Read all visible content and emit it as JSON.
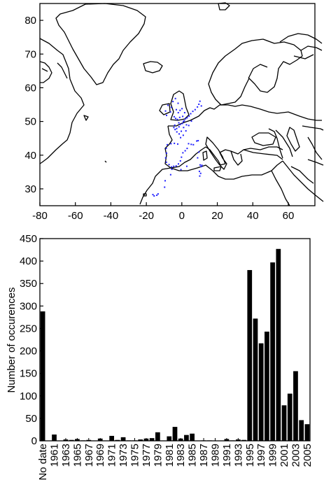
{
  "chart_data": [
    {
      "type": "map",
      "description_kind": "occurrence points on coastline map",
      "xlim": [
        -80,
        75
      ],
      "ylim": [
        25,
        85
      ],
      "xticks": [
        -80,
        -60,
        -40,
        -20,
        0,
        20,
        40,
        60
      ],
      "yticks": [
        30,
        40,
        50,
        60,
        70,
        80
      ],
      "point_color": "#1f1fff",
      "points": [
        [
          -4.5,
          48.2
        ],
        [
          -3.8,
          47.6
        ],
        [
          -2.9,
          47.9
        ],
        [
          -1.6,
          48.4
        ],
        [
          -0.9,
          49.1
        ],
        [
          0.3,
          49.4
        ],
        [
          1.4,
          50.2
        ],
        [
          2.1,
          50.8
        ],
        [
          3.0,
          51.1
        ],
        [
          4.1,
          51.6
        ],
        [
          5.0,
          52.3
        ],
        [
          6.2,
          53.0
        ],
        [
          -2.5,
          50.6
        ],
        [
          -1.2,
          51.2
        ],
        [
          0.5,
          51.5
        ],
        [
          -3.5,
          50.9
        ],
        [
          -4.3,
          51.4
        ],
        [
          -2.0,
          52.6
        ],
        [
          -1.0,
          53.3
        ],
        [
          0.1,
          53.8
        ],
        [
          -3.1,
          53.5
        ],
        [
          -5.9,
          54.2
        ],
        [
          -6.4,
          52.8
        ],
        [
          -8.6,
          51.8
        ],
        [
          -9.2,
          53.1
        ],
        [
          -7.8,
          54.8
        ],
        [
          -5.0,
          55.9
        ],
        [
          -3.6,
          56.8
        ],
        [
          -2.1,
          55.4
        ],
        [
          1.6,
          52.6
        ],
        [
          2.6,
          49.0
        ],
        [
          1.0,
          48.2
        ],
        [
          -0.3,
          47.1
        ],
        [
          -1.5,
          46.3
        ],
        [
          -0.7,
          45.2
        ],
        [
          0.8,
          45.9
        ],
        [
          2.3,
          47.2
        ],
        [
          3.9,
          48.8
        ],
        [
          -2.8,
          46.9
        ],
        [
          -4.0,
          48.9
        ],
        [
          5.4,
          50.1
        ],
        [
          7.5,
          53.5
        ],
        [
          8.8,
          54.3
        ],
        [
          10.2,
          56.0
        ],
        [
          11.0,
          54.6
        ],
        [
          9.6,
          55.1
        ],
        [
          -1.7,
          49.6
        ],
        [
          0.9,
          50.0
        ],
        [
          -8.2,
          43.1
        ],
        [
          -6.1,
          43.4
        ],
        [
          -4.2,
          43.5
        ],
        [
          -2.3,
          43.3
        ],
        [
          -8.8,
          42.0
        ],
        [
          -8.6,
          40.6
        ],
        [
          -9.1,
          39.2
        ],
        [
          -8.7,
          37.9
        ],
        [
          -7.2,
          37.2
        ],
        [
          -5.8,
          36.5
        ],
        [
          -4.6,
          36.7
        ],
        [
          -3.2,
          36.8
        ],
        [
          -1.9,
          37.4
        ],
        [
          -0.8,
          38.3
        ],
        [
          -0.2,
          39.4
        ],
        [
          0.6,
          40.7
        ],
        [
          1.9,
          41.3
        ],
        [
          3.0,
          42.0
        ],
        [
          3.8,
          43.4
        ],
        [
          5.3,
          43.2
        ],
        [
          6.5,
          43.1
        ],
        [
          8.4,
          44.2
        ],
        [
          9.2,
          44.3
        ],
        [
          8.9,
          39.2
        ],
        [
          9.6,
          40.9
        ],
        [
          10.3,
          37.1
        ],
        [
          10.9,
          36.6
        ],
        [
          9.9,
          35.2
        ],
        [
          10.6,
          34.6
        ],
        [
          10.1,
          33.8
        ],
        [
          -5.6,
          35.8
        ],
        [
          -6.3,
          34.2
        ],
        [
          -9.4,
          32.4
        ],
        [
          -9.7,
          30.5
        ],
        [
          -13.4,
          28.5
        ],
        [
          -15.6,
          27.9
        ],
        [
          -16.3,
          28.3
        ],
        [
          -14.1,
          28.1
        ],
        [
          11.3,
          37.0
        ],
        [
          -0.5,
          35.7
        ],
        [
          2.8,
          36.7
        ]
      ]
    },
    {
      "type": "bar",
      "ylabel": "Number of occurences",
      "ylim": [
        0,
        450
      ],
      "yticks": [
        0,
        50,
        100,
        150,
        200,
        250,
        300,
        350,
        400,
        450
      ],
      "categories": [
        "No date",
        "1960",
        "1961",
        "1962",
        "1963",
        "1964",
        "1965",
        "1966",
        "1967",
        "1968",
        "1969",
        "1970",
        "1971",
        "1972",
        "1973",
        "1974",
        "1975",
        "1976",
        "1977",
        "1978",
        "1979",
        "1980",
        "1981",
        "1982",
        "1983",
        "1984",
        "1985",
        "1986",
        "1987",
        "1988",
        "1989",
        "1990",
        "1991",
        "1992",
        "1993",
        "1994",
        "1995",
        "1996",
        "1997",
        "1998",
        "1999",
        "2000",
        "2001",
        "2002",
        "2003",
        "2004",
        "2005"
      ],
      "x_tick_labels": [
        "No date",
        "1961",
        "1963",
        "1965",
        "1967",
        "1969",
        "1971",
        "1973",
        "1975",
        "1977",
        "1979",
        "1981",
        "1983",
        "1985",
        "1987",
        "1989",
        "1991",
        "1993",
        "1995",
        "1997",
        "1999",
        "2001",
        "2003",
        "2005"
      ],
      "values": [
        288,
        0,
        14,
        0,
        3,
        2,
        4,
        1,
        2,
        0,
        5,
        0,
        11,
        2,
        8,
        1,
        1,
        3,
        5,
        6,
        19,
        0,
        10,
        31,
        5,
        13,
        16,
        0,
        1,
        1,
        0,
        0,
        4,
        1,
        3,
        2,
        380,
        272,
        217,
        243,
        397,
        427,
        79,
        105,
        155,
        46,
        37
      ]
    }
  ]
}
